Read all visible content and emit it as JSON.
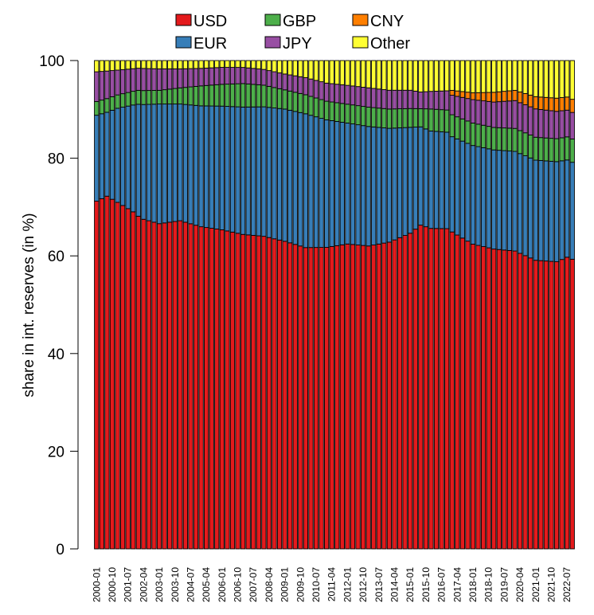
{
  "chart_data": {
    "type": "bar",
    "stacked": true,
    "ylabel": "share in int. reserves (in %)",
    "ylim": [
      0,
      100
    ],
    "yticks": [
      0,
      20,
      40,
      60,
      80,
      100
    ],
    "legend": {
      "placement": "top"
    },
    "quarters_start": "2000-01",
    "x_tick_labels": [
      "2000-01",
      "2000-10",
      "2001-07",
      "2002-04",
      "2003-01",
      "2003-10",
      "2004-07",
      "2005-04",
      "2006-01",
      "2006-10",
      "2007-07",
      "2008-04",
      "2009-01",
      "2009-10",
      "2010-07",
      "2011-04",
      "2012-01",
      "2012-10",
      "2013-07",
      "2014-04",
      "2015-01",
      "2015-10",
      "2016-07",
      "2017-04",
      "2018-01",
      "2018-10",
      "2019-07",
      "2020-04",
      "2021-01",
      "2021-10",
      "2022-07"
    ],
    "series": [
      {
        "name": "USD",
        "color": "#e41a1c"
      },
      {
        "name": "EUR",
        "color": "#377eb8"
      },
      {
        "name": "GBP",
        "color": "#4daf4a"
      },
      {
        "name": "JPY",
        "color": "#984ea3"
      },
      {
        "name": "CNY",
        "color": "#ff7f00"
      },
      {
        "name": "Other",
        "color": "#ffff33"
      }
    ],
    "keyframes": {
      "USD": [
        [
          0,
          71.2
        ],
        [
          2,
          72.3
        ],
        [
          4,
          72.6
        ],
        [
          7,
          70.7
        ],
        [
          9,
          67.8
        ],
        [
          12,
          66.6
        ],
        [
          16,
          67.2
        ],
        [
          20,
          66.1
        ],
        [
          24,
          65.8
        ],
        [
          28,
          64.2
        ],
        [
          32,
          63.5
        ],
        [
          36,
          64.0
        ],
        [
          40,
          61.7
        ],
        [
          44,
          61.5
        ],
        [
          48,
          61.5
        ],
        [
          52,
          61.1
        ],
        [
          56,
          62.0
        ],
        [
          60,
          63.8
        ],
        [
          62,
          65.9
        ],
        [
          64,
          65.5
        ],
        [
          68,
          64.9
        ],
        [
          72,
          62.4
        ],
        [
          76,
          61.4
        ],
        [
          80,
          61.0
        ],
        [
          84,
          59.1
        ],
        [
          88,
          58.8
        ],
        [
          90,
          60.0
        ],
        [
          92,
          58.9
        ]
      ],
      "EUR": [
        [
          0,
          17.6
        ],
        [
          2,
          17.2
        ],
        [
          4,
          19.7
        ],
        [
          8,
          23.3
        ],
        [
          12,
          24.5
        ],
        [
          16,
          23.9
        ],
        [
          20,
          24.8
        ],
        [
          24,
          25.5
        ],
        [
          28,
          26.0
        ],
        [
          32,
          26.3
        ],
        [
          36,
          27.5
        ],
        [
          40,
          27.4
        ],
        [
          44,
          26.0
        ],
        [
          48,
          24.4
        ],
        [
          52,
          24.1
        ],
        [
          56,
          23.0
        ],
        [
          60,
          21.4
        ],
        [
          62,
          20.0
        ],
        [
          64,
          19.9
        ],
        [
          68,
          19.5
        ],
        [
          72,
          20.2
        ],
        [
          76,
          20.3
        ],
        [
          80,
          20.4
        ],
        [
          84,
          20.5
        ],
        [
          88,
          20.5
        ],
        [
          90,
          20.0
        ],
        [
          92,
          19.8
        ]
      ],
      "GBP": [
        [
          0,
          2.8
        ],
        [
          4,
          2.8
        ],
        [
          8,
          2.9
        ],
        [
          12,
          2.8
        ],
        [
          16,
          3.3
        ],
        [
          20,
          4.1
        ],
        [
          24,
          4.5
        ],
        [
          28,
          4.8
        ],
        [
          32,
          4.4
        ],
        [
          36,
          4.0
        ],
        [
          40,
          3.9
        ],
        [
          44,
          3.8
        ],
        [
          48,
          3.8
        ],
        [
          52,
          3.9
        ],
        [
          56,
          3.9
        ],
        [
          60,
          3.8
        ],
        [
          62,
          3.7
        ],
        [
          64,
          4.5
        ],
        [
          68,
          4.5
        ],
        [
          72,
          4.6
        ],
        [
          76,
          4.6
        ],
        [
          80,
          4.7
        ],
        [
          84,
          4.7
        ],
        [
          88,
          4.7
        ],
        [
          92,
          4.8
        ]
      ],
      "JPY": [
        [
          0,
          6.1
        ],
        [
          4,
          5.2
        ],
        [
          8,
          4.6
        ],
        [
          12,
          4.4
        ],
        [
          16,
          3.9
        ],
        [
          20,
          3.6
        ],
        [
          24,
          3.5
        ],
        [
          28,
          3.3
        ],
        [
          32,
          3.2
        ],
        [
          36,
          3.3
        ],
        [
          40,
          3.5
        ],
        [
          44,
          3.7
        ],
        [
          48,
          3.8
        ],
        [
          52,
          3.9
        ],
        [
          56,
          3.8
        ],
        [
          60,
          3.7
        ],
        [
          62,
          3.4
        ],
        [
          64,
          3.6
        ],
        [
          68,
          4.0
        ],
        [
          72,
          4.8
        ],
        [
          76,
          5.2
        ],
        [
          80,
          5.7
        ],
        [
          84,
          5.8
        ],
        [
          88,
          5.6
        ],
        [
          92,
          5.4
        ]
      ],
      "CNY": [
        [
          0,
          0
        ],
        [
          67,
          0
        ],
        [
          68,
          1.0
        ],
        [
          72,
          1.4
        ],
        [
          76,
          2.0
        ],
        [
          80,
          2.1
        ],
        [
          84,
          2.5
        ],
        [
          88,
          2.7
        ],
        [
          92,
          2.7
        ]
      ],
      "Other": [
        [
          0,
          2.3
        ],
        [
          4,
          2.0
        ],
        [
          8,
          1.6
        ],
        [
          12,
          1.7
        ],
        [
          16,
          1.7
        ],
        [
          20,
          1.6
        ],
        [
          24,
          1.4
        ],
        [
          28,
          1.4
        ],
        [
          32,
          1.8
        ],
        [
          36,
          2.8
        ],
        [
          40,
          3.5
        ],
        [
          44,
          4.6
        ],
        [
          48,
          5.0
        ],
        [
          52,
          5.5
        ],
        [
          56,
          6.0
        ],
        [
          60,
          6.0
        ],
        [
          62,
          6.4
        ],
        [
          64,
          6.3
        ],
        [
          68,
          6.1
        ],
        [
          72,
          6.6
        ],
        [
          76,
          6.5
        ],
        [
          80,
          6.1
        ],
        [
          84,
          7.4
        ],
        [
          88,
          7.7
        ],
        [
          90,
          7.5
        ],
        [
          92,
          8.4
        ]
      ]
    }
  }
}
